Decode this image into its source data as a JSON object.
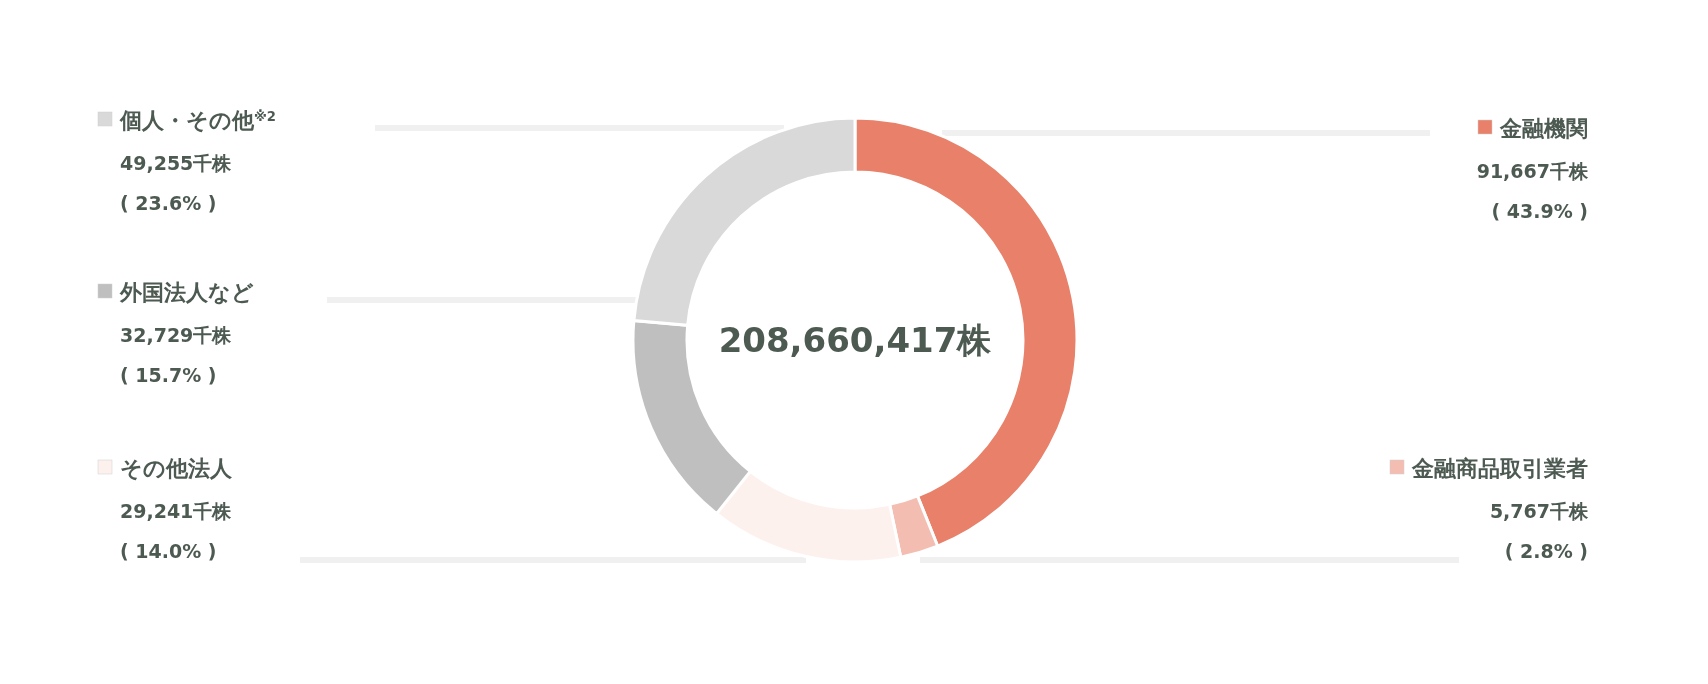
{
  "chart_data": {
    "type": "donut",
    "categories": [
      "金融機関",
      "金融商品取引業者",
      "その他法人",
      "外国法人など",
      "個人・その他$^{※2}$"
    ],
    "values": [
      91667,
      5767,
      29241,
      32729,
      49255
    ],
    "colors": [
      "#e8806a",
      "#f3bdb1",
      "#fdf1ee",
      "#bfbfbf",
      "#d9d9d9"
    ],
    "value_labels": [
      "91,667千株\n( 43.9% )",
      "5,767千株\n( 2.8% )",
      "29,241千株\n( 14.0% )",
      "32,729千株\n( 15.7% )",
      "49,255千株\n( 23.6% )"
    ],
    "annotations": [
      "208,660,417株"
    ],
    "legend": "left"
  }
}
